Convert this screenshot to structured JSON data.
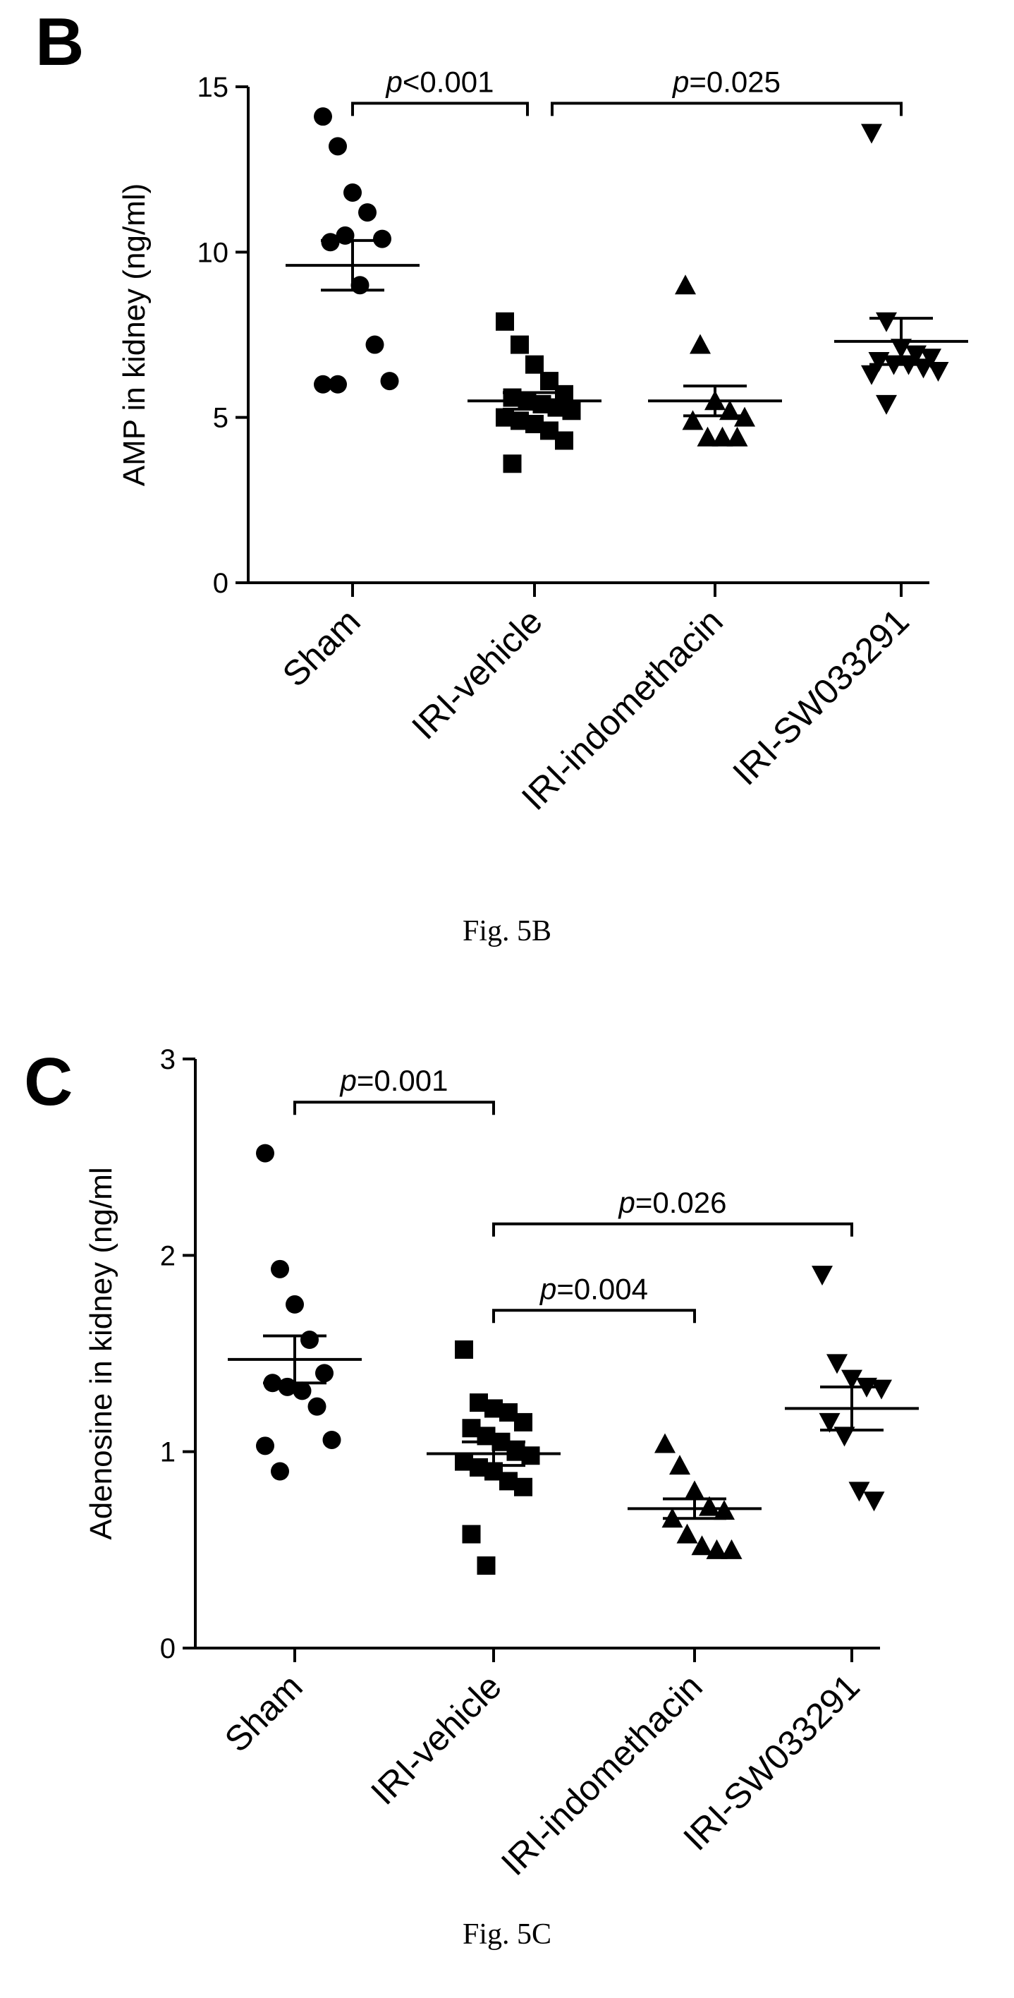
{
  "chart_data": [
    {
      "type": "scatter",
      "panel_label": "B",
      "caption": "Fig. 5B",
      "ylabel": "AMP in kidney (ng/ml)",
      "ylim": [
        0,
        15
      ],
      "yticks": [
        "0",
        "5",
        "10",
        "15"
      ],
      "categories": [
        "Sham",
        "IRI-vehicle",
        "IRI-indomethacin",
        "IRI-SW033291"
      ],
      "markers": [
        "circle",
        "square",
        "triangle-up",
        "triangle-down"
      ],
      "series": [
        {
          "values": [
            14.1,
            13.2,
            11.8,
            11.2,
            10.4,
            10.3,
            10.5,
            9.0,
            7.2,
            6.1,
            6.0,
            6.0
          ],
          "mean": 9.6,
          "sem": 0.75
        },
        {
          "values": [
            7.9,
            7.2,
            6.6,
            6.1,
            5.7,
            5.6,
            5.5,
            5.4,
            5.3,
            5.2,
            5.0,
            4.9,
            4.8,
            4.6,
            4.3,
            3.6
          ],
          "mean": 5.5,
          "sem": 0.25
        },
        {
          "values": [
            9.0,
            7.2,
            5.5,
            5.2,
            5.0,
            4.9,
            4.4,
            4.4,
            4.4
          ],
          "mean": 5.5,
          "sem": 0.45
        },
        {
          "values": [
            13.6,
            7.9,
            7.1,
            6.9,
            6.8,
            6.7,
            6.6,
            6.6,
            6.5,
            6.4,
            6.3,
            5.4
          ],
          "mean": 7.3,
          "sem": 0.7
        }
      ],
      "brackets": [
        {
          "label_prefix": "p",
          "label_value": "<0.001",
          "from": 0,
          "to": 1,
          "y": 14.5
        },
        {
          "label_prefix": "p",
          "label_value": "=0.025",
          "from": 1,
          "to": 3,
          "y": 14.5
        }
      ]
    },
    {
      "type": "scatter",
      "panel_label": "C",
      "caption": "Fig. 5C",
      "ylabel": "Adenosine in kidney (ng/ml",
      "ylim": [
        0,
        3
      ],
      "yticks": [
        "0",
        "1",
        "2",
        "3"
      ],
      "categories": [
        "Sham",
        "IRI-vehicle",
        "IRI-indomethacin",
        "IRI-SW033291"
      ],
      "markers": [
        "circle",
        "square",
        "triangle-up",
        "triangle-down"
      ],
      "series": [
        {
          "values": [
            2.52,
            1.93,
            1.75,
            1.57,
            1.4,
            1.35,
            1.33,
            1.31,
            1.23,
            1.06,
            1.03,
            0.9
          ],
          "mean": 1.47,
          "sem": 0.12
        },
        {
          "values": [
            1.52,
            1.25,
            1.22,
            1.2,
            1.15,
            1.12,
            1.08,
            1.05,
            1.0,
            0.98,
            0.95,
            0.92,
            0.9,
            0.85,
            0.82,
            0.58,
            0.42
          ],
          "mean": 0.99,
          "sem": 0.06
        },
        {
          "values": [
            1.04,
            0.93,
            0.8,
            0.72,
            0.7,
            0.66,
            0.58,
            0.52,
            0.5,
            0.5
          ],
          "mean": 0.71,
          "sem": 0.05
        },
        {
          "values": [
            1.9,
            1.45,
            1.37,
            1.33,
            1.32,
            1.15,
            1.08,
            0.8,
            0.75
          ],
          "mean": 1.22,
          "sem": 0.11
        }
      ],
      "brackets": [
        {
          "label_prefix": "p",
          "label_value": "=0.001",
          "from": 0,
          "to": 1,
          "y": 2.78
        },
        {
          "label_prefix": "p",
          "label_value": "=0.026",
          "from": 1,
          "to": 3,
          "y": 2.16
        },
        {
          "label_prefix": "p",
          "label_value": "=0.004",
          "from": 1,
          "to": 2,
          "y": 1.72
        }
      ]
    }
  ]
}
